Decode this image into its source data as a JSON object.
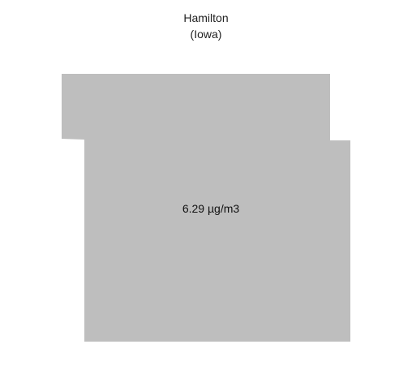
{
  "map": {
    "title": "Hamilton",
    "subtitle": "(Iowa)",
    "value_label": "6.29 µg/m3",
    "fill_color": "#bebebe",
    "background_color": "#ffffff"
  }
}
